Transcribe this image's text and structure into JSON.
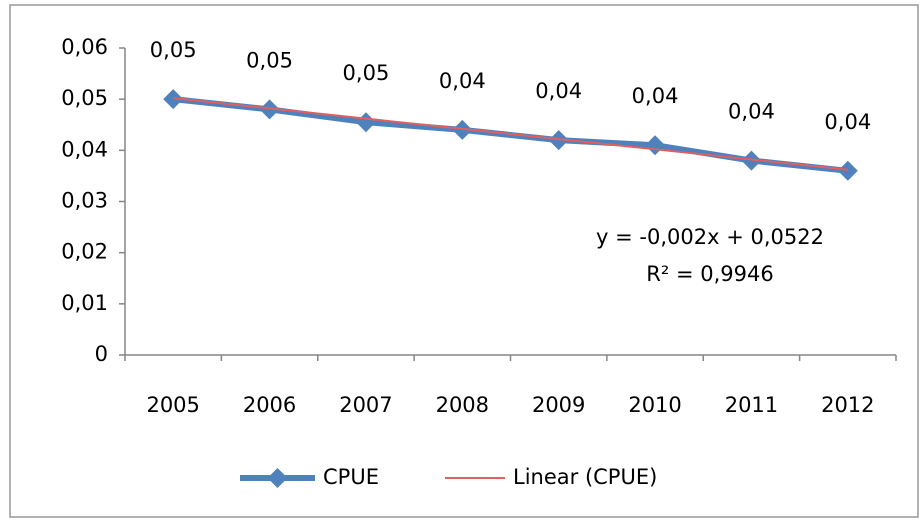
{
  "chart_data": {
    "type": "line",
    "categories": [
      "2005",
      "2006",
      "2007",
      "2008",
      "2009",
      "2010",
      "2011",
      "2012"
    ],
    "series": [
      {
        "name": "CPUE",
        "color": "#4f81bd",
        "values": [
          0.05,
          0.048,
          0.0455,
          0.044,
          0.042,
          0.041,
          0.038,
          0.036
        ],
        "value_labels": [
          "0,05",
          "0,05",
          "0,05",
          "0,04",
          "0,04",
          "0,04",
          "0,04",
          "0,04"
        ]
      },
      {
        "name": "Linear (CPUE)",
        "color": "#e06060",
        "values": [
          0.0502,
          0.0482,
          0.0462,
          0.0442,
          0.0422,
          0.0402,
          0.0382,
          0.0362
        ]
      }
    ],
    "annotations": [
      "y = -0,002x + 0,0522",
      "R² = 0,9946"
    ],
    "ylim": [
      0,
      0.06
    ],
    "yticks": [
      0,
      {
        "value": 0.01,
        "label": "0,01"
      },
      {
        "value": 0.02,
        "label": "0,02"
      },
      {
        "value": 0.03,
        "label": "0,03"
      },
      {
        "value": 0.04,
        "label": "0,04"
      },
      {
        "value": 0.05,
        "label": "0,05"
      },
      {
        "value": 0.06,
        "label": "0,06"
      }
    ],
    "grid": false
  }
}
